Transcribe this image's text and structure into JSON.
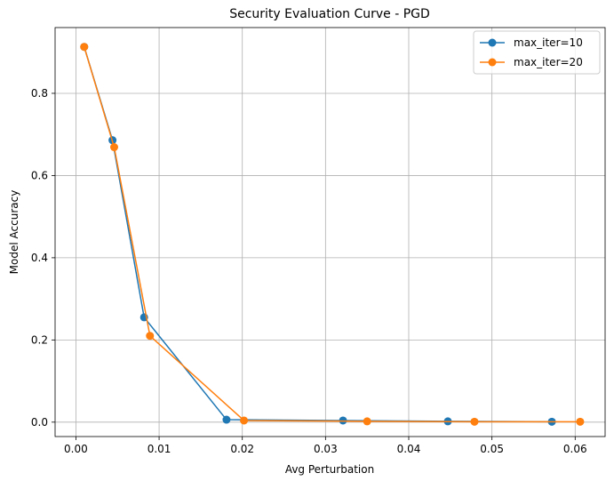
{
  "chart_data": {
    "type": "line",
    "title": "Security Evaluation Curve - PGD",
    "xlabel": "Avg Perturbation",
    "ylabel": "Model Accuracy",
    "xlim": [
      -0.0025,
      0.0636
    ],
    "ylim": [
      -0.035,
      0.96
    ],
    "xticks": [
      0.0,
      0.01,
      0.02,
      0.03,
      0.04,
      0.05,
      0.06
    ],
    "xtick_labels": [
      "0.00",
      "0.01",
      "0.02",
      "0.03",
      "0.04",
      "0.05",
      "0.06"
    ],
    "yticks": [
      0.0,
      0.2,
      0.4,
      0.6,
      0.8
    ],
    "ytick_labels": [
      "0.0",
      "0.2",
      "0.4",
      "0.6",
      "0.8"
    ],
    "grid": true,
    "legend_position": "top-right",
    "series": [
      {
        "name": "max_iter=10",
        "color": "#1f77b4",
        "marker": "circle",
        "x": [
          0.001,
          0.0044,
          0.0082,
          0.0181,
          0.0321,
          0.0447,
          0.0572
        ],
        "y": [
          0.913,
          0.686,
          0.255,
          0.006,
          0.004,
          0.002,
          0.001
        ]
      },
      {
        "name": "max_iter=20",
        "color": "#ff7f0e",
        "marker": "circle",
        "x": [
          0.001,
          0.0046,
          0.0089,
          0.0202,
          0.035,
          0.0479,
          0.0606
        ],
        "y": [
          0.913,
          0.669,
          0.21,
          0.004,
          0.002,
          0.001,
          0.001
        ]
      }
    ]
  }
}
